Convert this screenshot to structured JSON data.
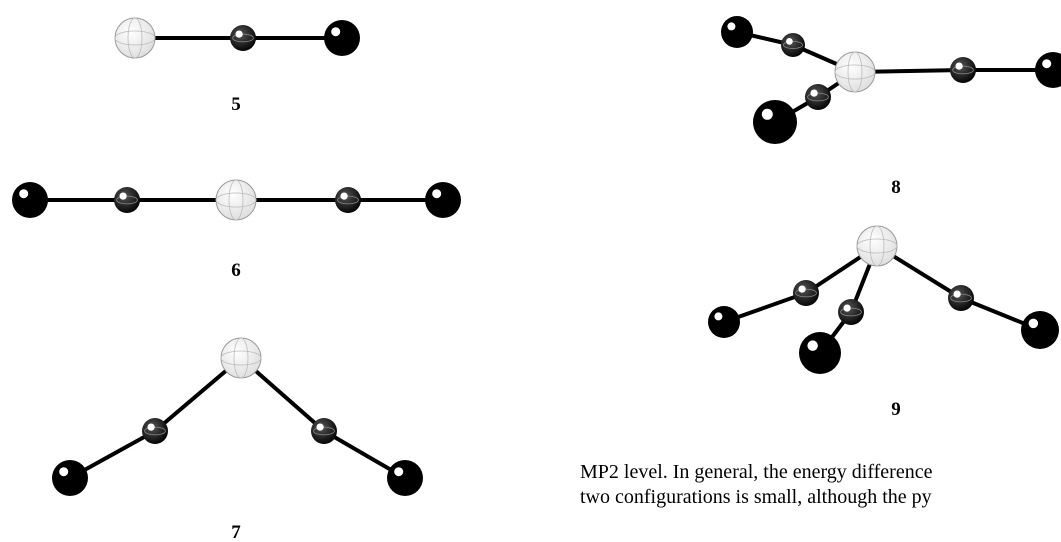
{
  "figures": [
    {
      "label": "5"
    },
    {
      "label": "6"
    },
    {
      "label": "7"
    },
    {
      "label": "8"
    },
    {
      "label": "9"
    }
  ],
  "text": {
    "lines": [
      "MP2 level. In general, the energy difference",
      "two configurations is small, although the py"
    ]
  }
}
